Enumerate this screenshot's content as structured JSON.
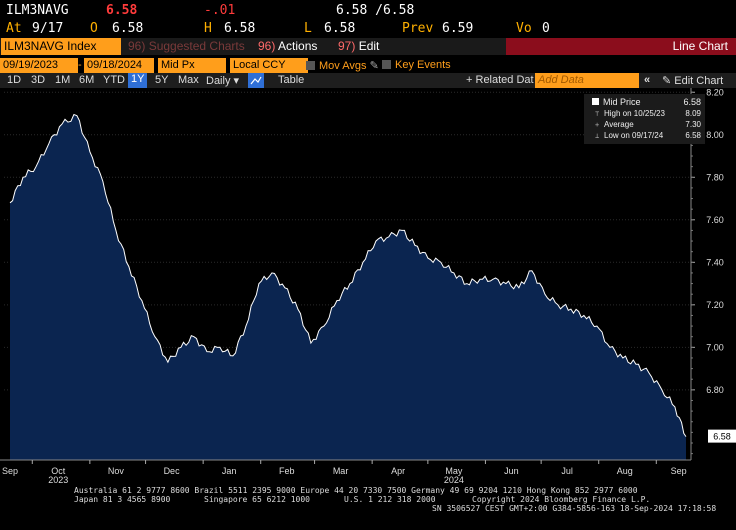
{
  "quote": {
    "ticker": "ILM3NAVG",
    "last": "6.58",
    "change": "-.01",
    "bid_ask": "6.58 /6.58",
    "at_label": "At",
    "at_value": "9/17",
    "open_label": "O",
    "open_value": "6.58",
    "high_label": "H",
    "high_value": "6.58",
    "low_label": "L",
    "low_value": "6.58",
    "prev_label": "Prev",
    "prev_value": "6.59",
    "vol_label": "Vo",
    "vol_value": "0"
  },
  "menubar": {
    "security": "ILM3NAVG Index",
    "suggested_num": "96)",
    "suggested": "Suggested Charts",
    "actions_num": "96)",
    "actions": "Actions",
    "edit_num": "97)",
    "edit": "Edit",
    "title": "Line Chart"
  },
  "settings": {
    "start_date": "09/19/2023",
    "end_date": "09/18/2024",
    "field": "Mid Px",
    "currency": "Local CCY",
    "mov_avgs": "Mov Avgs",
    "key_events": "Key Events"
  },
  "periods": {
    "items": [
      "1D",
      "3D",
      "1M",
      "6M",
      "YTD",
      "1Y",
      "5Y",
      "Max"
    ],
    "active": "1Y",
    "frequency": "Daily",
    "table": "Table",
    "related": "Related Dat",
    "add_data_placeholder": "Add Data",
    "edit_chart": "Edit Chart"
  },
  "chart_data": {
    "type": "area",
    "series": [
      {
        "name": "Mid Price"
      }
    ],
    "x": [
      "2023-09-19",
      "2023-09-26",
      "2023-10-03",
      "2023-10-10",
      "2023-10-17",
      "2023-10-25",
      "2023-11-01",
      "2023-11-08",
      "2023-11-15",
      "2023-11-22",
      "2023-11-29",
      "2023-12-06",
      "2023-12-13",
      "2023-12-20",
      "2023-12-27",
      "2024-01-03",
      "2024-01-10",
      "2024-01-17",
      "2024-01-24",
      "2024-01-31",
      "2024-02-07",
      "2024-02-14",
      "2024-02-21",
      "2024-02-28",
      "2024-03-06",
      "2024-03-13",
      "2024-03-20",
      "2024-03-27",
      "2024-04-03",
      "2024-04-10",
      "2024-04-17",
      "2024-04-24",
      "2024-05-01",
      "2024-05-08",
      "2024-05-15",
      "2024-05-22",
      "2024-05-29",
      "2024-06-05",
      "2024-06-12",
      "2024-06-19",
      "2024-06-26",
      "2024-07-03",
      "2024-07-10",
      "2024-07-17",
      "2024-07-24",
      "2024-07-31",
      "2024-08-07",
      "2024-08-14",
      "2024-08-21",
      "2024-08-28",
      "2024-09-04",
      "2024-09-11",
      "2024-09-17"
    ],
    "values": [
      7.68,
      7.8,
      7.85,
      7.96,
      8.05,
      8.09,
      7.92,
      7.78,
      7.55,
      7.38,
      7.22,
      7.05,
      6.93,
      7.0,
      7.05,
      6.98,
      7.0,
      6.96,
      7.1,
      7.3,
      7.35,
      7.28,
      7.18,
      7.02,
      7.1,
      7.22,
      7.3,
      7.4,
      7.5,
      7.52,
      7.55,
      7.48,
      7.42,
      7.4,
      7.35,
      7.3,
      7.32,
      7.32,
      7.3,
      7.28,
      7.36,
      7.25,
      7.2,
      7.18,
      7.15,
      7.1,
      7.0,
      6.95,
      6.92,
      6.88,
      6.8,
      6.72,
      6.58
    ],
    "x_tick_labels": [
      "Sep",
      "Oct",
      "Nov",
      "Dec",
      "Jan",
      "Feb",
      "Mar",
      "Apr",
      "May",
      "Jun",
      "Jul",
      "Aug",
      "Sep"
    ],
    "year_labels": [
      "2023",
      "2024"
    ],
    "y_tick_labels": [
      "6.80",
      "7.00",
      "7.20",
      "7.40",
      "7.60",
      "7.80",
      "8.00",
      "8.20"
    ],
    "ylim": [
      6.47,
      8.22
    ],
    "last_value_label": "6.58",
    "legend": {
      "placement": "top-right",
      "series_label": "Mid Price",
      "series_value": "6.58",
      "high_label": "High on 10/25/23",
      "high_value": "8.09",
      "avg_label": "Average",
      "avg_value": "7.30",
      "low_label": "Low on 09/17/24",
      "low_value": "6.58"
    },
    "colors": {
      "line": "#ffffff",
      "fill": "#0b2550",
      "grid": "#2a2a2a"
    }
  },
  "footer": {
    "line1": "Australia 61 2 9777 8600 Brazil 5511 2395 9000 Europe 44 20 7330 7500 Germany 49 69 9204 1210 Hong Kong 852 2977 6000",
    "line2_left": "Japan 81 3 4565 8900",
    "line2_mid": "Singapore 65 6212 1000",
    "line2_us": "U.S. 1 212 318 2000",
    "copyright": "Copyright 2024 Bloomberg Finance L.P.",
    "sn": "SN 3506527 CEST GMT+2:00 G384-5856-163 18-Sep-2024 17:18:58"
  }
}
